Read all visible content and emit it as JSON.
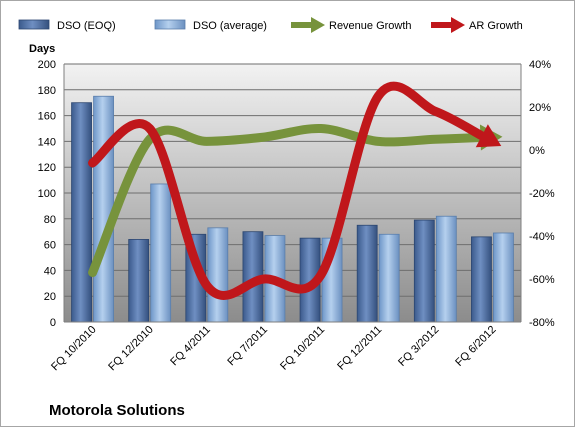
{
  "chart_data": {
    "type": "bar",
    "title": "Motorola Solutions",
    "ylabel": "Days",
    "ylim": [
      0,
      200
    ],
    "y_ticks": [
      0,
      20,
      40,
      60,
      80,
      100,
      120,
      140,
      160,
      180,
      200
    ],
    "y2lim": [
      -80,
      40
    ],
    "y2_ticks": [
      "-80%",
      "-60%",
      "-40%",
      "-20%",
      "0%",
      "20%",
      "40%"
    ],
    "y2_tick_values": [
      -80,
      -60,
      -40,
      -20,
      0,
      20,
      40
    ],
    "categories": [
      "FQ 10/2010",
      "FQ 12/2010",
      "FQ 4/2011",
      "FQ 7/2011",
      "FQ 10/2011",
      "FQ 12/2011",
      "FQ 3/2012",
      "FQ 6/2012"
    ],
    "grid": true,
    "legend_position": "top",
    "series": [
      {
        "name": "DSO (EOQ)",
        "type": "bar",
        "axis": "left",
        "color": "#4f6fa0",
        "values": [
          170,
          64,
          68,
          70,
          65,
          75,
          79,
          66
        ]
      },
      {
        "name": "DSO (average)",
        "type": "bar",
        "axis": "left",
        "color": "#8fb3de",
        "values": [
          175,
          107,
          73,
          67,
          65,
          68,
          82,
          69
        ]
      },
      {
        "name": "Revenue Growth",
        "type": "line",
        "axis": "right",
        "unit": "%",
        "color": "#77933c",
        "values": [
          -57,
          5,
          4,
          6,
          10,
          4,
          5,
          6
        ]
      },
      {
        "name": "AR Growth",
        "type": "line",
        "axis": "right",
        "unit": "%",
        "color": "#c0171b",
        "values": [
          -6,
          10,
          -63,
          -60,
          -58,
          25,
          18,
          4
        ]
      }
    ]
  }
}
